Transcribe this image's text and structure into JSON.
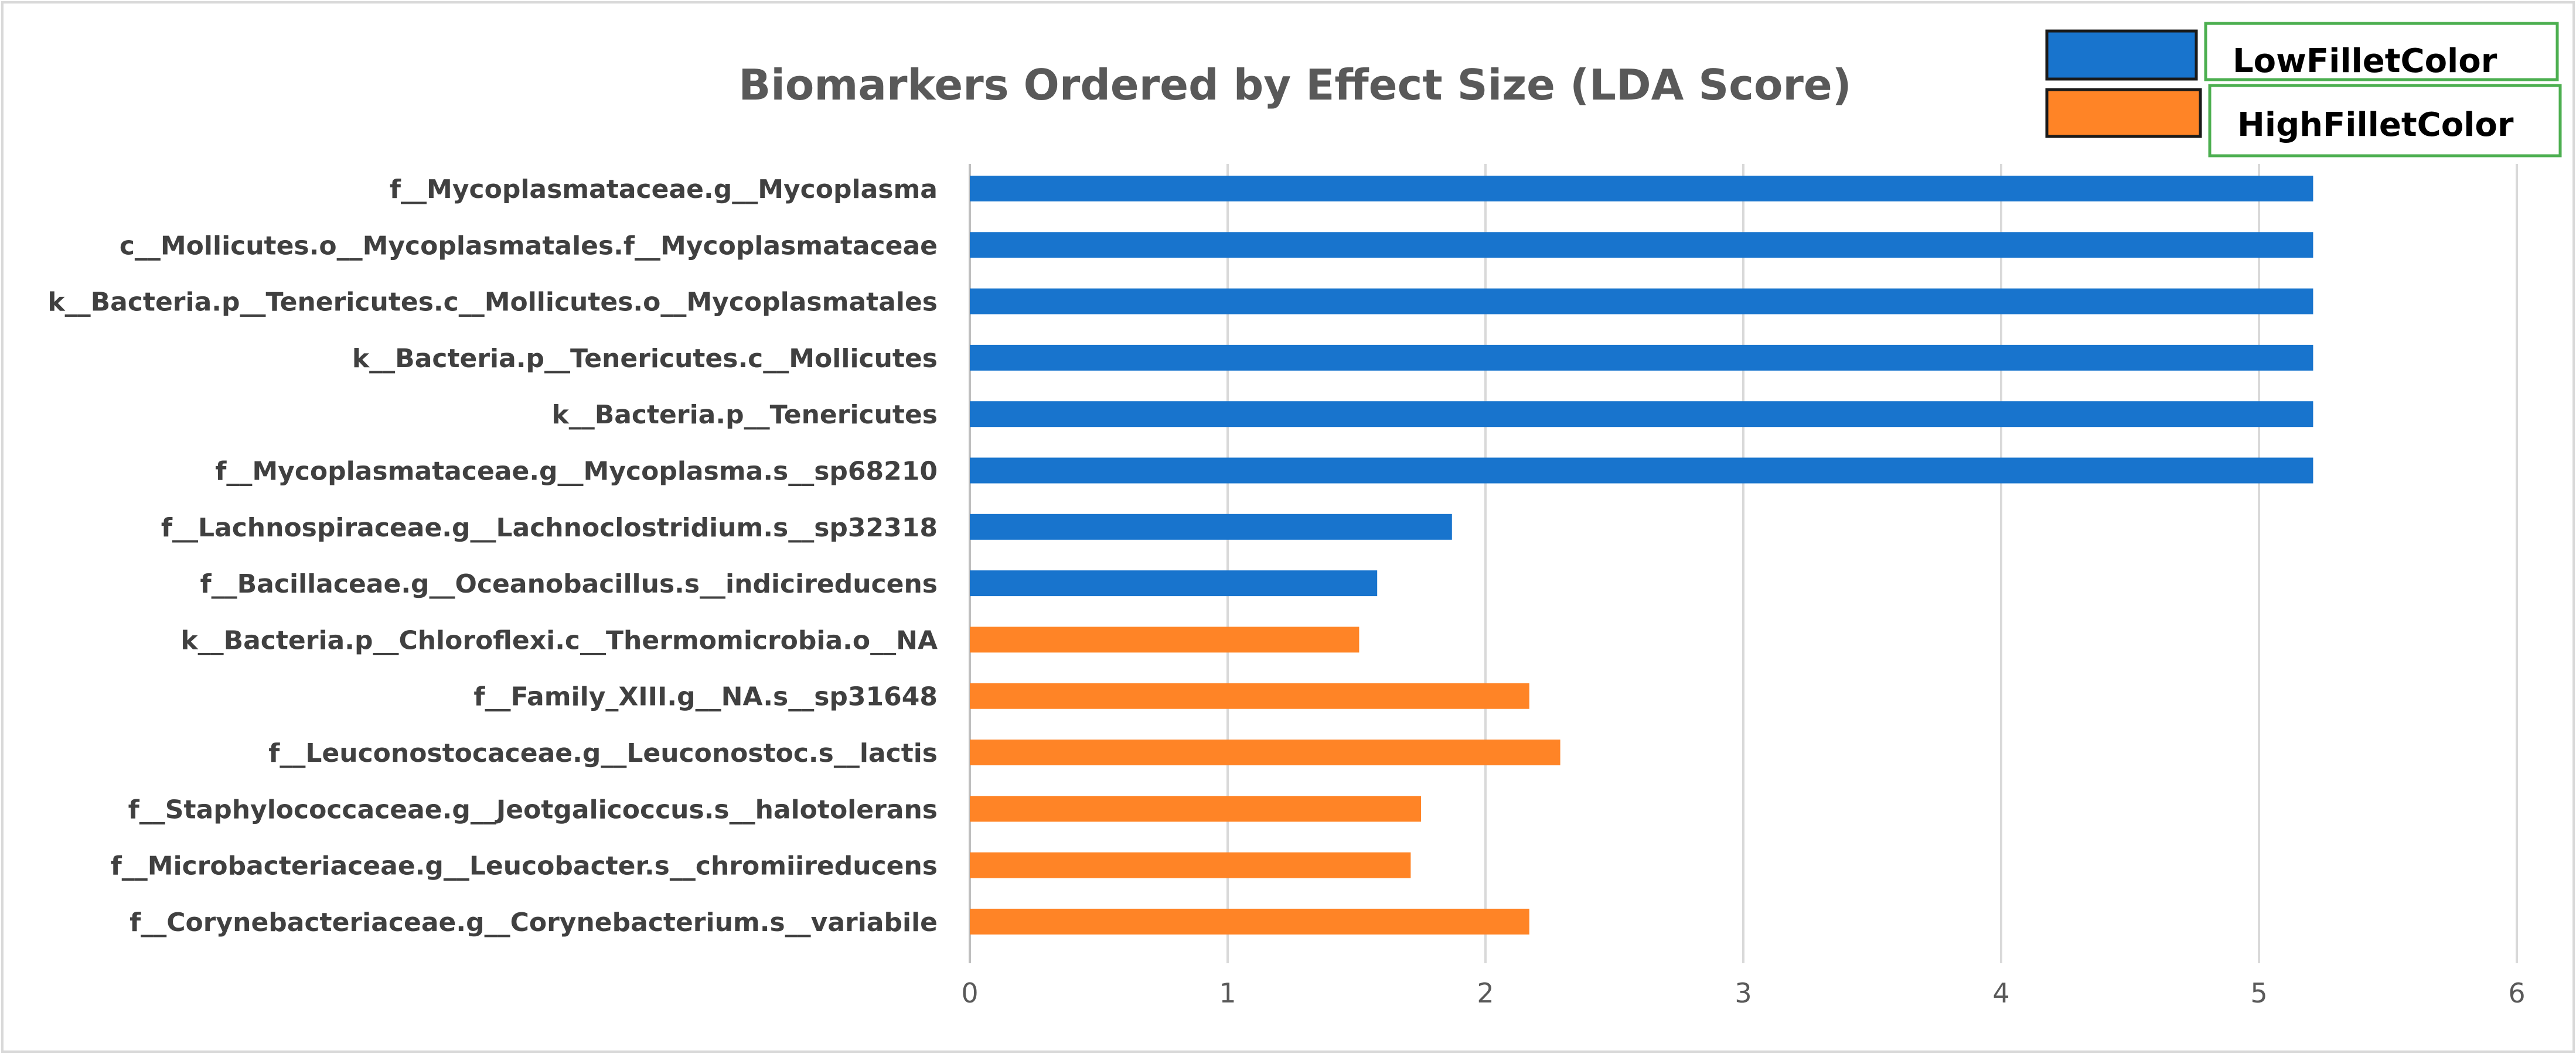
{
  "chart_data": {
    "type": "bar",
    "orientation": "horizontal",
    "title": "Biomarkers Ordered by Effect Size (LDA Score)",
    "xlabel": "",
    "ylabel": "",
    "xlim": [
      0,
      6
    ],
    "xticks": [
      "0",
      "1",
      "2",
      "3",
      "4",
      "5",
      "6"
    ],
    "grid": true,
    "legend_position": "top-right",
    "legend": [
      {
        "name": "LowFilletColor",
        "color": "#1874CD"
      },
      {
        "name": "HighFilletColor",
        "color": "#FF8426"
      }
    ],
    "categories": [
      "f__Mycoplasmataceae.g__Mycoplasma",
      "c__Mollicutes.o__Mycoplasmatales.f__Mycoplasmataceae",
      "k__Bacteria.p__Tenericutes.c__Mollicutes.o__Mycoplasmatales",
      "k__Bacteria.p__Tenericutes.c__Mollicutes",
      "k__Bacteria.p__Tenericutes",
      "f__Mycoplasmataceae.g__Mycoplasma.s__sp68210",
      "f__Lachnospiraceae.g__Lachnoclostridium.s__sp32318",
      "f__Bacillaceae.g__Oceanobacillus.s__indicireducens",
      "k__Bacteria.p__Chloroflexi.c__Thermomicrobia.o__NA",
      "f__Family_XIII.g__NA.s__sp31648",
      "f__Leuconostocaceae.g__Leuconostoc.s__lactis",
      "f__Staphylococcaceae.g__Jeotgalicoccus.s__halotolerans",
      "f__Microbacteriaceae.g__Leucobacter.s__chromiireducens",
      "f__Corynebacteriaceae.g__Corynebacterium.s__variabile"
    ],
    "values": [
      5.21,
      5.21,
      5.21,
      5.21,
      5.21,
      5.21,
      1.87,
      1.58,
      1.51,
      2.17,
      2.29,
      1.75,
      1.71,
      2.17
    ],
    "groups": [
      "LowFilletColor",
      "LowFilletColor",
      "LowFilletColor",
      "LowFilletColor",
      "LowFilletColor",
      "LowFilletColor",
      "LowFilletColor",
      "LowFilletColor",
      "HighFilletColor",
      "HighFilletColor",
      "HighFilletColor",
      "HighFilletColor",
      "HighFilletColor",
      "HighFilletColor"
    ]
  }
}
